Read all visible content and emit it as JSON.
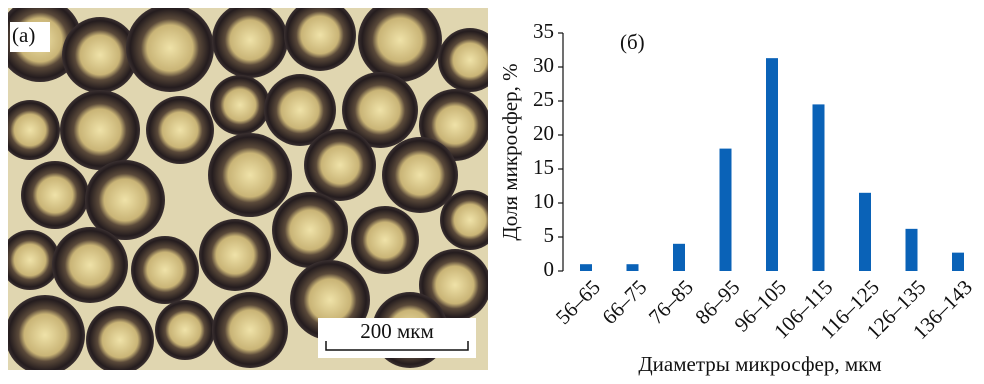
{
  "figure": {
    "panel_a_label": "(а)",
    "scale_bar": "200 мкм"
  },
  "chart_data": {
    "type": "bar",
    "annotation": "(б)",
    "x_label": "Диаметры микросфер, мкм",
    "y_label": "Доля микросфер, %",
    "categories": [
      "56–65",
      "66–75",
      "76–85",
      "86–95",
      "96–105",
      "106–115",
      "116–125",
      "126–135",
      "136–143"
    ],
    "values": [
      1,
      1,
      4,
      18,
      31.3,
      24.5,
      11.5,
      6.2,
      2.7
    ],
    "color": "#0a62b7",
    "ylim": [
      0,
      35
    ],
    "yticks": [
      0,
      5,
      10,
      15,
      20,
      25,
      30,
      35
    ],
    "grid": false
  }
}
